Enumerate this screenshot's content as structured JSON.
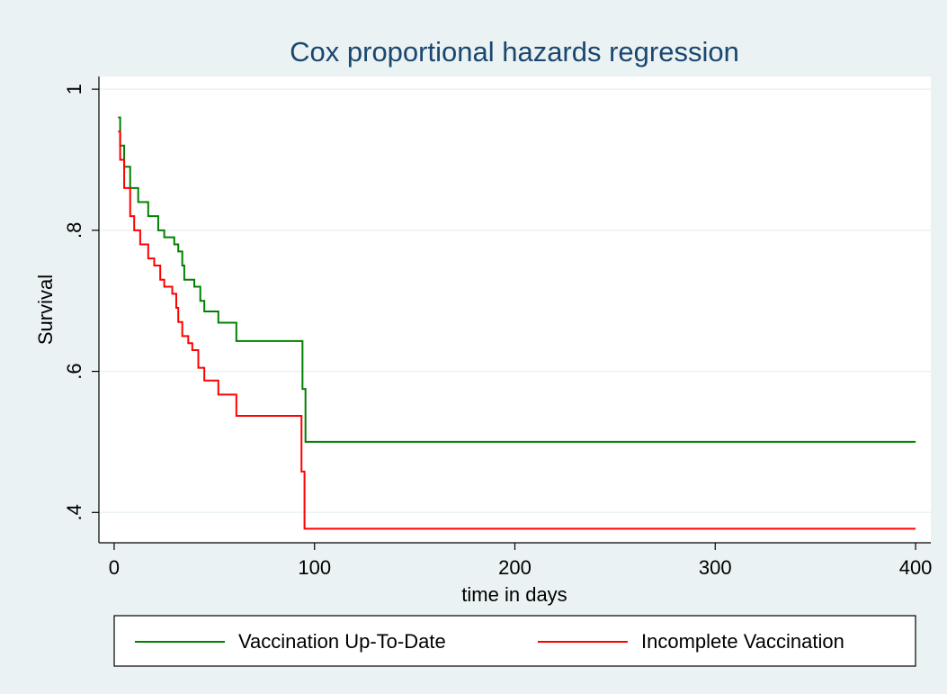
{
  "chart_data": {
    "type": "line",
    "title": "Cox proportional hazards regression",
    "x_label": "time in days",
    "y_label": "Survival",
    "drawstyle": "steps-post",
    "grid": true,
    "xlim": [
      -7.6,
      407.6
    ],
    "ylim": [
      0.357,
      1.018
    ],
    "xticks": [
      0,
      100,
      200,
      300,
      400
    ],
    "yticks": [
      {
        "value": 0.4,
        "label": ".4"
      },
      {
        "value": 0.6,
        "label": ".6"
      },
      {
        "value": 0.8,
        "label": ".8"
      },
      {
        "value": 1,
        "label": "1"
      }
    ],
    "series": [
      {
        "name": "Vaccination Up-To-Date",
        "color": "#008000",
        "x": [
          2,
          3,
          5,
          8,
          12,
          17,
          22,
          25,
          30,
          32,
          34,
          35,
          40,
          43,
          45,
          52,
          61,
          94,
          95.5,
          400
        ],
        "values": [
          0.96,
          0.92,
          0.89,
          0.86,
          0.84,
          0.82,
          0.8,
          0.79,
          0.78,
          0.77,
          0.75,
          0.73,
          0.72,
          0.7,
          0.685,
          0.669,
          0.643,
          0.575,
          0.5,
          0.5
        ]
      },
      {
        "name": "Incomplete Vaccination",
        "color": "#ff0000",
        "x": [
          2,
          3,
          5,
          8,
          10,
          13,
          17,
          20,
          23,
          25,
          29,
          31,
          32,
          34,
          37,
          39,
          42,
          45,
          52,
          61,
          93.5,
          95,
          400
        ],
        "values": [
          0.94,
          0.9,
          0.86,
          0.82,
          0.8,
          0.78,
          0.76,
          0.75,
          0.73,
          0.72,
          0.71,
          0.69,
          0.67,
          0.65,
          0.64,
          0.63,
          0.605,
          0.587,
          0.567,
          0.537,
          0.458,
          0.377,
          0.377
        ]
      }
    ]
  }
}
